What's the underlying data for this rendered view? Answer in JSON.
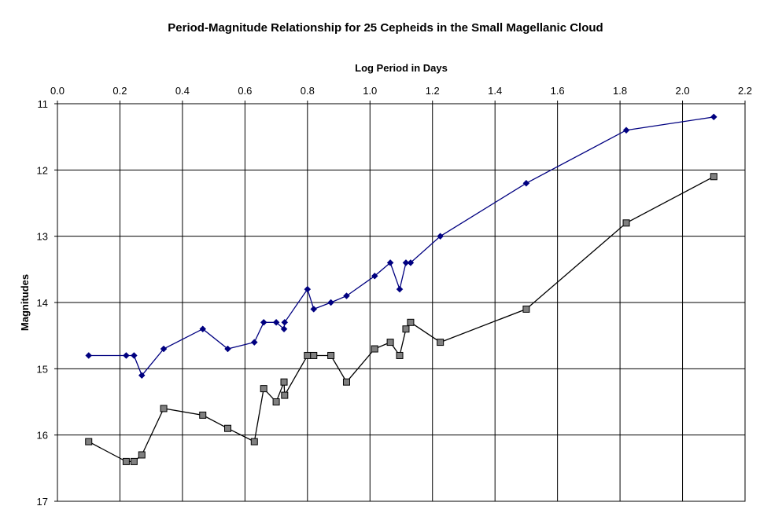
{
  "chart_data": {
    "type": "line",
    "title": "Period-Magnitude Relationship for 25 Cepheids in the Small Magellanic Cloud",
    "xlabel": "Log Period in Days",
    "ylabel": "Magnitudes",
    "xlim": [
      0.0,
      2.2
    ],
    "ylim": [
      11,
      17
    ],
    "y_inverted": true,
    "x_axis_position": "top",
    "grid": true,
    "x_ticks": [
      "0.0",
      "0.2",
      "0.4",
      "0.6",
      "0.8",
      "1.0",
      "1.2",
      "1.4",
      "1.6",
      "1.8",
      "2.0",
      "2.2"
    ],
    "y_ticks": [
      "11",
      "12",
      "13",
      "14",
      "15",
      "16",
      "17"
    ],
    "x": [
      0.1,
      0.22,
      0.245,
      0.27,
      0.34,
      0.465,
      0.545,
      0.63,
      0.66,
      0.7,
      0.725,
      0.727,
      0.8,
      0.82,
      0.875,
      0.925,
      1.015,
      1.065,
      1.095,
      1.115,
      1.13,
      1.225,
      1.5,
      1.82,
      2.1
    ],
    "series": [
      {
        "values": [
          14.8,
          14.8,
          14.8,
          15.1,
          14.7,
          14.4,
          14.7,
          14.6,
          14.3,
          14.3,
          14.4,
          14.3,
          13.8,
          14.1,
          14.0,
          13.9,
          13.6,
          13.4,
          13.8,
          13.4,
          13.4,
          13.0,
          12.2,
          11.4,
          11.2
        ],
        "color": "#000080",
        "marker": "diamond"
      },
      {
        "values": [
          16.1,
          16.4,
          16.4,
          16.3,
          15.6,
          15.7,
          15.9,
          16.1,
          15.3,
          15.5,
          15.2,
          15.4,
          14.8,
          14.8,
          14.8,
          15.2,
          14.7,
          14.6,
          14.8,
          14.4,
          14.3,
          14.6,
          14.1,
          12.8,
          12.1
        ],
        "color": "#000000",
        "marker_fill": "#808080",
        "marker": "square"
      }
    ]
  }
}
